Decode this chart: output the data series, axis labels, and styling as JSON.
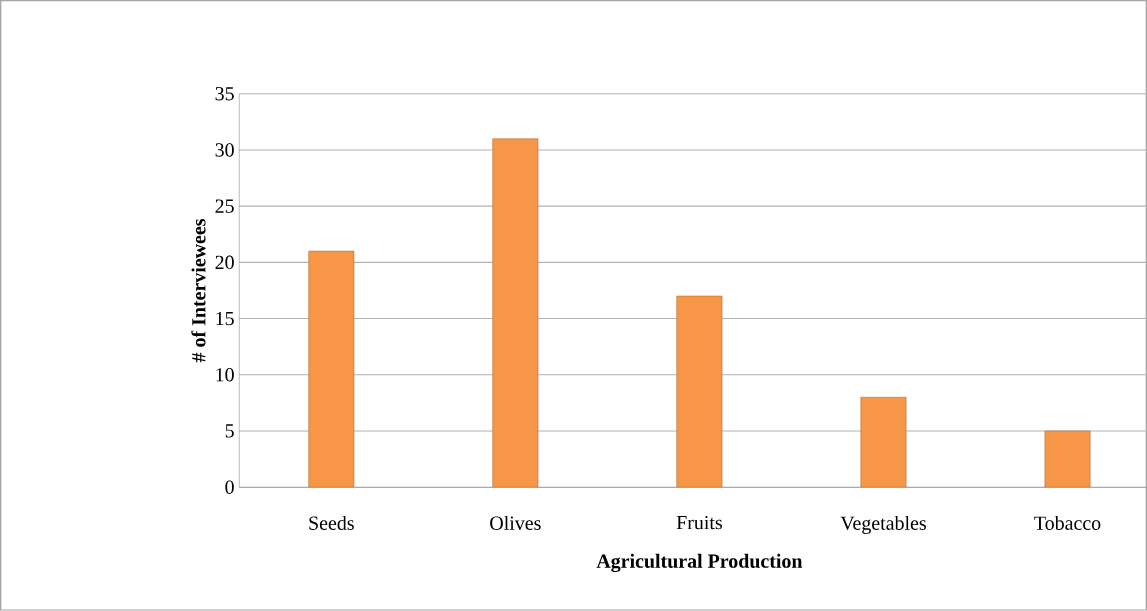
{
  "chart_data": {
    "type": "bar",
    "xlabel": "Agricultural Production",
    "ylabel": "# of Interviewees",
    "categories": [
      "Seeds",
      "Olives",
      "Fruits",
      "Vegetables",
      "Tobacco"
    ],
    "values": [
      21,
      31,
      17,
      8,
      5
    ],
    "color": "#f79646",
    "ylim": [
      0,
      35
    ],
    "yticks": [
      0,
      5,
      10,
      15,
      20,
      25,
      30,
      35
    ],
    "grid": "y"
  }
}
